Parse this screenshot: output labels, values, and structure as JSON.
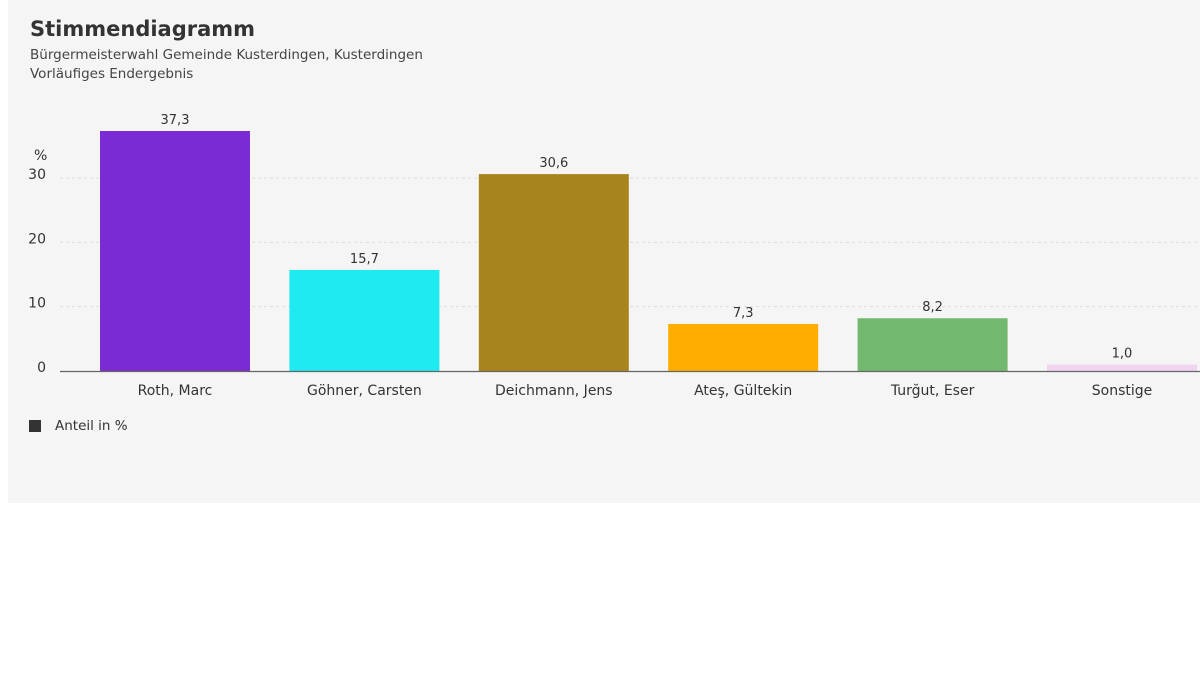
{
  "chart_data": {
    "type": "bar",
    "title": "Stimmendiagramm",
    "subtitle_lines": [
      "Bürgermeisterwahl Gemeinde Kusterdingen, Kusterdingen",
      "Vorläufiges Endergebnis"
    ],
    "ylabel": "%",
    "ylim": [
      0,
      37.3
    ],
    "yticks": [
      "0",
      "10",
      "20",
      "30"
    ],
    "categories": [
      "Roth, Marc",
      "Göhner, Carsten",
      "Deichmann, Jens",
      "Ateş, Gültekin",
      "Turğut, Eser",
      "Sonstige"
    ],
    "values": [
      37.3,
      15.7,
      30.6,
      7.3,
      8.2,
      1.0
    ],
    "value_labels": [
      "37,3",
      "15,7",
      "30,6",
      "7,3",
      "8,2",
      "1,0"
    ],
    "colors": [
      "#7b2bd4",
      "#1eeaf0",
      "#a8841d",
      "#ffae00",
      "#72b86f",
      "#f0d4f0"
    ],
    "series": [
      {
        "name": "Anteil in %",
        "values": [
          37.3,
          15.7,
          30.6,
          7.3,
          8.2,
          1.0
        ]
      }
    ],
    "legend_position": "bottom-left",
    "grid": true
  }
}
